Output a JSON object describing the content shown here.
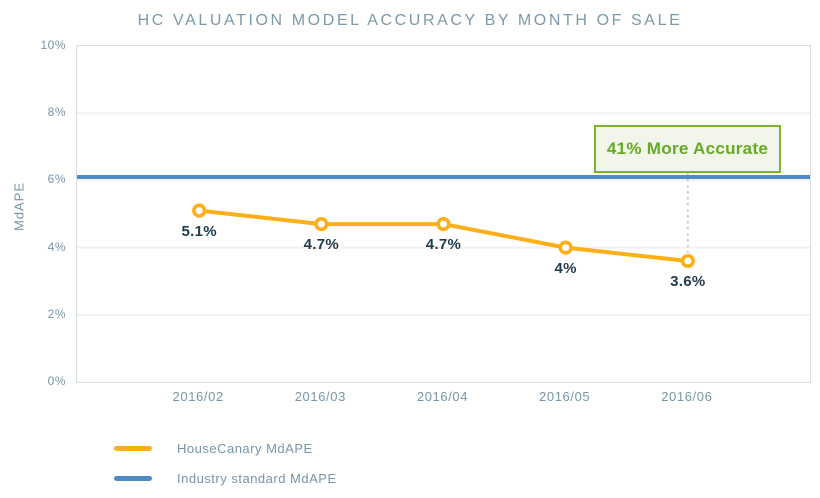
{
  "chart": {
    "title": "HC VALUATION MODEL ACCURACY BY MONTH OF SALE",
    "y_axis_title": "MdAPE",
    "annotation": "41% More Accurate"
  },
  "legend": {
    "items": [
      {
        "label": "HouseCanary MdAPE",
        "color": "#FCAF17"
      },
      {
        "label": "Industry standard MdAPE",
        "color": "#4E8BC6"
      }
    ]
  },
  "chart_data": {
    "type": "line",
    "title": "HC VALUATION MODEL ACCURACY BY MONTH OF SALE",
    "xlabel": "",
    "ylabel": "MdAPE",
    "ylim": [
      0,
      10
    ],
    "y_ticks": [
      "10%",
      "8%",
      "6%",
      "4%",
      "2%",
      "0%"
    ],
    "y_tick_values": [
      10,
      8,
      6,
      4,
      2,
      0
    ],
    "categories": [
      "2016/02",
      "2016/03",
      "2016/04",
      "2016/05",
      "2016/06"
    ],
    "series": [
      {
        "name": "HouseCanary MdAPE",
        "type": "line",
        "color": "#FCAF17",
        "values": [
          5.1,
          4.7,
          4.7,
          4.0,
          3.6
        ],
        "point_labels": [
          "5.1%",
          "4.7%",
          "4.7%",
          "4%",
          "3.6%"
        ]
      },
      {
        "name": "Industry standard MdAPE",
        "type": "hline",
        "color": "#4E8BC6",
        "value": 6.1
      }
    ],
    "annotation": {
      "text": "41% More Accurate",
      "attached_to": "2016/06"
    },
    "grid": "horizontal",
    "gridline_color": "#F1F1F1",
    "legend_position": "bottom-left",
    "colors": {
      "axis_text": "#7696A6",
      "point_label_text": "#1E3A4C",
      "annotation_green": "#66A922",
      "annotation_border": "#7FB42D",
      "annotation_bg": "#F2F5E9",
      "connector_dotted": "#CDCDCD"
    }
  }
}
